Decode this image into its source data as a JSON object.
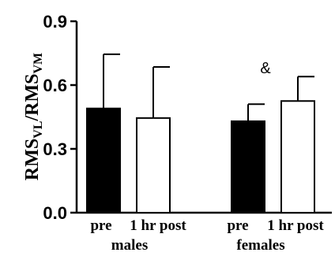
{
  "chart_data": {
    "type": "bar",
    "ylabel": {
      "parts": [
        "RMS",
        "VL",
        "/RMS",
        "VM"
      ]
    },
    "ylim": [
      0.0,
      0.9
    ],
    "yticks": [
      "0.0",
      "0.3",
      "0.6",
      "0.9"
    ],
    "yticks_values": [
      0.0,
      0.3,
      0.6,
      0.9
    ],
    "groups": [
      {
        "name": "males",
        "bars": [
          {
            "label": "pre",
            "value": 0.49,
            "error": 0.255,
            "fill": "#000000"
          },
          {
            "label": "1 hr post",
            "value": 0.445,
            "error": 0.24,
            "fill": "#ffffff"
          }
        ]
      },
      {
        "name": "females",
        "bars": [
          {
            "label": "pre",
            "value": 0.43,
            "error": 0.08,
            "fill": "#000000"
          },
          {
            "label": "1 hr post",
            "value": 0.525,
            "error": 0.115,
            "fill": "#ffffff"
          }
        ]
      }
    ],
    "annotations": [
      {
        "text": "&",
        "group": "females",
        "bar": "1 hr post"
      }
    ],
    "grid": false,
    "colors": {
      "pre": "#000000",
      "post": "#ffffff",
      "stroke": "#000000"
    }
  }
}
